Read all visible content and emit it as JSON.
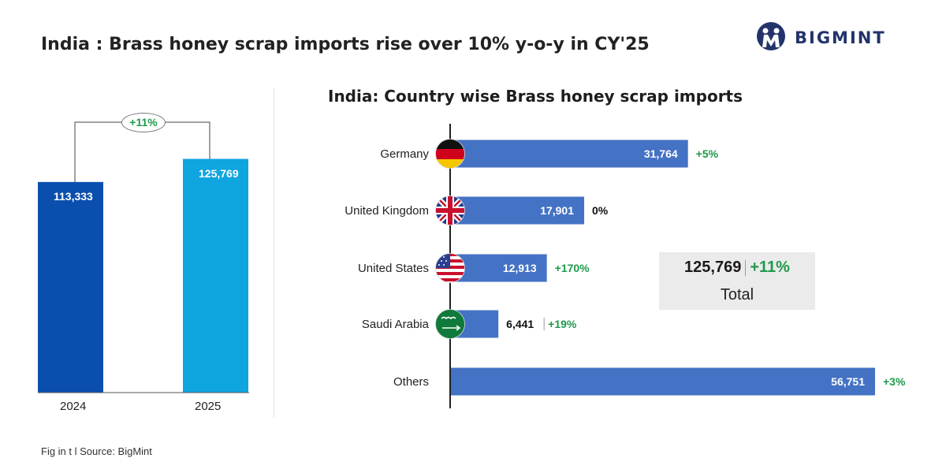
{
  "header": {
    "title": "India : Brass honey scrap imports rise over 10% y-o-y in CY'25",
    "brand": "BIGMINT"
  },
  "colors": {
    "bar_2024": "#0a4fae",
    "bar_2025": "#0fa5df",
    "country_bar": "#4472c4",
    "positive": "#1f9a4b",
    "total_bg": "#ebebeb"
  },
  "chart_data": [
    {
      "type": "bar",
      "categories": [
        "2024",
        "2025"
      ],
      "values": [
        113333,
        125769
      ],
      "value_labels": [
        "113,333",
        "125,769"
      ],
      "growth_label": "+11%",
      "ylim": [
        0,
        140000
      ]
    },
    {
      "type": "bar",
      "orientation": "horizontal",
      "title": "India: Country wise Brass honey scrap imports",
      "categories": [
        "Germany",
        "United Kingdom",
        "United States",
        "Saudi Arabia",
        "Others"
      ],
      "flags": [
        "germany-flag-icon",
        "uk-flag-icon",
        "us-flag-icon",
        "saudi-flag-icon",
        ""
      ],
      "values": [
        31764,
        17901,
        12913,
        6441,
        56751
      ],
      "value_labels": [
        "31,764",
        "17,901",
        "12,913",
        "6,441",
        "56,751"
      ],
      "changes": [
        "+5%",
        "0%",
        "+170%",
        "+19%",
        "+3%"
      ],
      "xlim": [
        0,
        60000
      ]
    }
  ],
  "summary": {
    "total_value": "125,769",
    "total_change": "+11%",
    "total_label": "Total"
  },
  "footer": {
    "text": "Fig in t  l  Source: BigMint"
  }
}
